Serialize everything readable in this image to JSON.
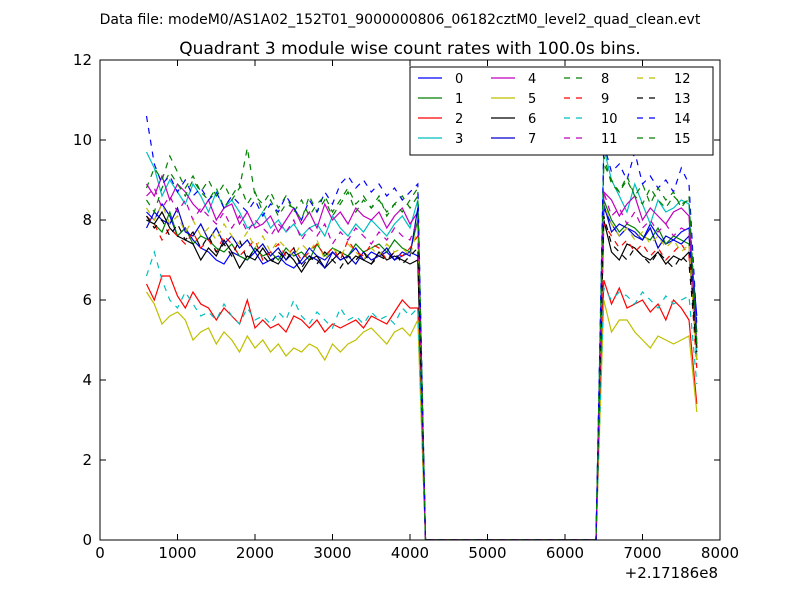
{
  "chart_data": {
    "type": "line",
    "suptitle": "Data file: modeM0/AS1A02_152T01_9000000806_06182cztM0_level2_quad_clean.evt",
    "title": "Quadrant 3 module wise count rates with 100.0s bins.",
    "xlabel": "",
    "ylabel": "",
    "x_offset_label": "+2.17186e8",
    "xlim": [
      0,
      8000
    ],
    "ylim": [
      0,
      12
    ],
    "xticks": [
      0,
      1000,
      2000,
      3000,
      4000,
      5000,
      6000,
      7000,
      8000
    ],
    "xtick_labels": [
      "0",
      "1000",
      "2000",
      "3000",
      "4000",
      "5000",
      "6000",
      "7000",
      "8000"
    ],
    "yticks": [
      0,
      2,
      4,
      6,
      8,
      10,
      12
    ],
    "ytick_labels": [
      "0",
      "2",
      "4",
      "6",
      "8",
      "10",
      "12"
    ],
    "grid": false,
    "legend_location": "top-right",
    "legend_columns": 4,
    "segments": [
      {
        "x_start": 600,
        "x_end": 4100,
        "step": 100
      },
      {
        "x_start": 6500,
        "x_end": 7700,
        "step": 100
      }
    ],
    "series": [
      {
        "name": "0",
        "color": "#0000ff",
        "dash": "solid",
        "seg1": [
          8.2,
          8.0,
          8.4,
          8.1,
          7.6,
          7.8,
          7.5,
          7.3,
          7.2,
          7.0,
          6.9,
          7.2,
          7.1,
          7.0,
          7.2,
          6.9,
          7.0,
          7.1,
          6.9,
          6.8,
          7.0,
          7.3,
          7.1,
          7.0,
          7.2,
          7.0,
          7.1,
          7.3,
          7.0,
          7.2,
          7.1,
          7.2,
          7.0,
          7.1,
          7.2,
          7.1
        ],
        "seg2": [
          8.3,
          7.9,
          7.6,
          7.8,
          7.7,
          7.5,
          7.9,
          7.6,
          7.4,
          7.5,
          7.7,
          7.8,
          5.6
        ]
      },
      {
        "name": "1",
        "color": "#008000",
        "dash": "solid",
        "seg1": [
          8.0,
          7.9,
          7.7,
          8.2,
          7.6,
          7.8,
          7.4,
          7.6,
          7.5,
          7.3,
          7.2,
          7.4,
          7.1,
          7.0,
          7.3,
          7.1,
          7.2,
          7.0,
          7.3,
          7.1,
          7.2,
          7.0,
          7.4,
          7.1,
          7.3,
          7.2,
          7.1,
          7.4,
          7.2,
          7.3,
          7.4,
          7.2,
          7.5,
          7.3,
          7.2,
          8.0
        ],
        "seg2": [
          8.5,
          8.0,
          7.7,
          7.9,
          7.8,
          7.6,
          7.5,
          7.8,
          7.4,
          7.6,
          7.5,
          7.4,
          4.5
        ]
      },
      {
        "name": "2",
        "color": "#ff0000",
        "dash": "solid",
        "seg1": [
          6.4,
          6.0,
          6.6,
          6.6,
          6.1,
          5.8,
          6.2,
          5.9,
          5.8,
          5.5,
          5.8,
          5.6,
          5.4,
          6.0,
          5.3,
          5.5,
          5.3,
          5.4,
          5.2,
          5.6,
          5.5,
          5.3,
          5.5,
          5.2,
          5.4,
          5.3,
          5.4,
          5.5,
          5.3,
          5.6,
          5.5,
          5.4,
          5.7,
          6.0,
          5.8,
          5.8
        ],
        "seg2": [
          6.5,
          5.9,
          6.3,
          5.8,
          5.9,
          6.0,
          5.7,
          5.9,
          5.5,
          6.0,
          5.8,
          5.5,
          3.4
        ]
      },
      {
        "name": "3",
        "color": "#00bfbf",
        "dash": "solid",
        "seg1": [
          9.7,
          9.3,
          8.6,
          9.0,
          8.7,
          8.4,
          8.9,
          8.6,
          8.2,
          8.7,
          8.3,
          8.5,
          8.2,
          7.8,
          7.9,
          8.2,
          7.8,
          8.0,
          7.7,
          7.9,
          7.6,
          7.8,
          7.9,
          7.6,
          8.1,
          7.8,
          7.6,
          7.9,
          7.7,
          8.0,
          7.8,
          7.6,
          7.9,
          8.1,
          7.8,
          8.5
        ],
        "seg2": [
          9.8,
          9.0,
          8.6,
          8.2,
          8.9,
          8.4,
          7.9,
          8.5,
          8.2,
          8.3,
          8.5,
          8.4,
          4.6
        ]
      },
      {
        "name": "4",
        "color": "#bf00bf",
        "dash": "solid",
        "seg1": [
          8.9,
          8.6,
          9.1,
          8.5,
          8.9,
          8.7,
          8.4,
          8.2,
          8.5,
          8.0,
          8.3,
          8.4,
          7.9,
          8.2,
          7.8,
          7.9,
          8.1,
          7.7,
          8.0,
          8.3,
          7.9,
          8.2,
          7.8,
          8.4,
          8.0,
          8.2,
          7.9,
          8.3,
          8.1,
          8.0,
          8.2,
          7.8,
          8.1,
          8.3,
          7.9,
          8.2
        ],
        "seg2": [
          8.7,
          8.5,
          8.1,
          8.4,
          8.6,
          8.0,
          8.3,
          8.1,
          7.9,
          8.2,
          8.3,
          8.1,
          4.8
        ]
      },
      {
        "name": "5",
        "color": "#bfbf00",
        "dash": "solid",
        "seg1": [
          6.2,
          5.9,
          5.4,
          5.6,
          5.7,
          5.5,
          5.0,
          5.2,
          5.3,
          4.9,
          5.2,
          5.0,
          4.7,
          5.1,
          4.8,
          5.0,
          4.7,
          4.9,
          4.6,
          4.8,
          4.7,
          4.9,
          4.8,
          4.5,
          4.9,
          4.7,
          4.9,
          5.0,
          5.2,
          5.3,
          5.1,
          4.9,
          5.2,
          5.3,
          5.1,
          5.5
        ],
        "seg2": [
          6.0,
          5.2,
          5.5,
          5.5,
          5.2,
          5.0,
          4.8,
          5.1,
          5.0,
          4.9,
          5.0,
          5.1,
          3.2
        ]
      },
      {
        "name": "6",
        "color": "#000000",
        "dash": "solid",
        "seg1": [
          8.0,
          7.9,
          8.2,
          7.8,
          7.6,
          7.5,
          7.4,
          7.0,
          7.3,
          7.1,
          7.5,
          7.2,
          6.8,
          7.1,
          7.0,
          7.3,
          7.0,
          6.9,
          7.2,
          7.0,
          6.7,
          7.0,
          7.1,
          6.8,
          7.0,
          7.2,
          6.9,
          7.1,
          7.0,
          6.9,
          7.2,
          7.0,
          7.1,
          7.0,
          6.9,
          7.0
        ],
        "seg2": [
          8.0,
          7.2,
          7.0,
          7.4,
          7.3,
          7.1,
          7.0,
          7.2,
          6.9,
          7.1,
          7.0,
          7.2,
          4.8
        ]
      },
      {
        "name": "7",
        "color": "#0000cc",
        "dash": "solid",
        "seg1": [
          7.8,
          8.2,
          8.0,
          7.9,
          8.3,
          7.7,
          7.6,
          7.9,
          7.5,
          7.8,
          7.4,
          7.6,
          7.3,
          7.5,
          7.2,
          7.4,
          7.1,
          7.3,
          7.0,
          7.2,
          6.9,
          7.1,
          7.0,
          6.8,
          7.2,
          7.0,
          7.1,
          6.9,
          7.2,
          7.0,
          7.1,
          7.3,
          7.0,
          7.2,
          7.1,
          8.3
        ],
        "seg2": [
          8.4,
          7.7,
          7.9,
          7.8,
          7.6,
          7.5,
          7.8,
          7.3,
          7.6,
          7.5,
          7.4,
          7.6,
          5.2
        ]
      },
      {
        "name": "8",
        "color": "#008000",
        "dash": "dashed",
        "seg1": [
          8.5,
          8.2,
          8.8,
          9.2,
          8.9,
          8.6,
          9.0,
          8.7,
          8.5,
          8.8,
          8.3,
          8.6,
          8.9,
          8.4,
          8.7,
          8.2,
          8.5,
          8.1,
          8.4,
          8.3,
          8.0,
          8.6,
          8.2,
          8.5,
          8.1,
          8.4,
          8.7,
          8.2,
          8.5,
          8.3,
          8.6,
          8.1,
          8.4,
          8.2,
          8.5,
          8.8
        ],
        "seg2": [
          9.6,
          8.9,
          8.7,
          9.0,
          8.6,
          8.4,
          8.8,
          8.5,
          8.3,
          8.6,
          8.4,
          8.5,
          5.0
        ]
      },
      {
        "name": "9",
        "color": "#ff0000",
        "dash": "dashed",
        "seg1": [
          8.1,
          7.9,
          7.5,
          7.8,
          7.6,
          7.4,
          7.7,
          7.3,
          7.5,
          7.2,
          7.6,
          7.4,
          7.1,
          7.3,
          7.5,
          7.0,
          7.2,
          7.4,
          7.1,
          7.3,
          7.0,
          7.2,
          7.4,
          7.1,
          7.3,
          7.0,
          7.5,
          7.2,
          7.1,
          7.4,
          7.3,
          7.0,
          7.2,
          7.1,
          7.3,
          7.6
        ],
        "seg2": [
          7.9,
          7.6,
          7.3,
          7.5,
          7.2,
          7.4,
          7.1,
          7.3,
          7.0,
          7.2,
          7.4,
          7.1,
          4.3
        ]
      },
      {
        "name": "10",
        "color": "#00bfbf",
        "dash": "dashed",
        "seg1": [
          6.6,
          7.2,
          6.5,
          6.0,
          5.8,
          6.2,
          5.9,
          5.6,
          5.7,
          5.5,
          5.9,
          5.6,
          5.4,
          5.8,
          5.5,
          5.6,
          5.4,
          5.7,
          5.5,
          6.0,
          5.6,
          5.4,
          5.7,
          5.5,
          5.3,
          5.8,
          5.5,
          5.6,
          5.4,
          5.7,
          5.5,
          5.6,
          5.4,
          5.8,
          5.6,
          5.8
        ],
        "seg2": [
          6.3,
          6.0,
          6.2,
          6.1,
          5.9,
          6.2,
          6.0,
          5.8,
          6.1,
          5.9,
          6.0,
          6.1,
          3.9
        ]
      },
      {
        "name": "11",
        "color": "#bf00bf",
        "dash": "dashed",
        "seg1": [
          8.6,
          8.8,
          8.3,
          8.6,
          8.2,
          8.5,
          8.0,
          8.3,
          8.1,
          7.9,
          8.2,
          7.8,
          8.1,
          7.7,
          8.0,
          7.8,
          7.6,
          7.9,
          7.7,
          8.0,
          7.5,
          7.8,
          7.6,
          7.9,
          7.4,
          7.7,
          7.5,
          7.8,
          7.6,
          7.4,
          7.7,
          7.5,
          7.8,
          7.6,
          7.5,
          8.0
        ],
        "seg2": [
          8.7,
          8.1,
          8.3,
          7.9,
          8.2,
          7.8,
          8.0,
          7.7,
          7.9,
          7.6,
          7.8,
          7.7,
          4.9
        ]
      },
      {
        "name": "12",
        "color": "#bfbf00",
        "dash": "dashed",
        "seg1": [
          8.3,
          8.0,
          8.4,
          7.9,
          8.1,
          7.7,
          8.0,
          7.6,
          7.8,
          7.5,
          7.9,
          7.6,
          7.4,
          7.7,
          7.3,
          7.6,
          7.2,
          7.5,
          7.3,
          7.1,
          7.4,
          7.2,
          7.5,
          7.0,
          7.3,
          7.1,
          7.4,
          7.2,
          7.0,
          7.3,
          7.1,
          7.4,
          7.2,
          7.3,
          7.1,
          7.8
        ],
        "seg2": [
          8.4,
          7.9,
          7.6,
          7.8,
          7.5,
          7.7,
          7.4,
          7.6,
          7.3,
          7.5,
          7.2,
          7.4,
          4.4
        ]
      },
      {
        "name": "13",
        "color": "#000000",
        "dash": "dashed",
        "seg1": [
          8.1,
          7.8,
          8.0,
          7.6,
          7.9,
          7.5,
          7.7,
          7.3,
          7.6,
          7.2,
          7.4,
          7.1,
          7.5,
          7.0,
          7.3,
          7.1,
          6.9,
          7.2,
          7.0,
          7.3,
          6.8,
          7.1,
          6.9,
          7.2,
          7.0,
          6.8,
          7.1,
          7.0,
          7.2,
          6.9,
          7.1,
          7.0,
          7.2,
          6.9,
          7.1,
          7.3
        ],
        "seg2": [
          8.1,
          7.4,
          7.2,
          7.0,
          7.3,
          7.1,
          6.9,
          7.2,
          7.0,
          6.8,
          7.1,
          6.9,
          4.7
        ]
      },
      {
        "name": "14",
        "color": "#0000ff",
        "dash": "dashed",
        "seg1": [
          10.6,
          9.4,
          8.9,
          9.1,
          8.7,
          9.0,
          8.6,
          8.8,
          8.5,
          8.7,
          8.3,
          8.6,
          8.4,
          8.2,
          8.5,
          8.1,
          8.4,
          8.2,
          8.6,
          8.3,
          8.0,
          8.5,
          8.2,
          8.7,
          8.4,
          8.9,
          9.1,
          8.8,
          9.0,
          8.7,
          8.9,
          8.6,
          8.8,
          8.5,
          8.7,
          8.9
        ],
        "seg2": [
          9.9,
          9.2,
          9.4,
          9.0,
          9.7,
          8.9,
          9.1,
          8.8,
          9.0,
          8.7,
          9.3,
          8.9,
          5.4
        ]
      },
      {
        "name": "15",
        "color": "#008000",
        "dash": "dashed",
        "seg1": [
          8.8,
          9.3,
          9.0,
          9.6,
          9.2,
          8.8,
          9.1,
          8.7,
          9.0,
          8.6,
          8.9,
          8.5,
          8.8,
          9.8,
          8.6,
          8.4,
          8.7,
          8.3,
          8.6,
          8.2,
          8.5,
          8.1,
          8.4,
          8.6,
          8.2,
          8.5,
          8.8,
          8.4,
          8.6,
          8.3,
          8.5,
          8.2,
          8.4,
          8.6,
          8.3,
          8.6
        ],
        "seg2": [
          9.4,
          9.0,
          8.7,
          9.1,
          8.6,
          8.9,
          8.4,
          8.8,
          8.5,
          8.7,
          8.3,
          8.6,
          4.9
        ]
      }
    ]
  }
}
